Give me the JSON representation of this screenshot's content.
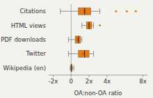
{
  "chart_data": {
    "type": "box",
    "orientation": "horizontal",
    "categories": [
      "Citations",
      "HTML views",
      "PDF downloads",
      "Twitter",
      "Wikipedia (en)"
    ],
    "boxes": [
      {
        "q1": 0.8,
        "median": 1.5,
        "q3": 2.2,
        "whisker_low": -1.2,
        "whisker_high": 3.2,
        "center": 1.5,
        "fliers": [
          5.0,
          6.2,
          7.2
        ]
      },
      {
        "q1": 1.7,
        "median": 2.0,
        "q3": 2.3,
        "whisker_low": 1.2,
        "whisker_high": 2.5,
        "center": 2.0,
        "fliers": [
          3.2
        ]
      },
      {
        "q1": 0.45,
        "median": 0.8,
        "q3": 1.05,
        "whisker_low": -0.3,
        "whisker_high": 1.2,
        "center": 0.75,
        "fliers": []
      },
      {
        "q1": 0.8,
        "median": 1.5,
        "q3": 2.0,
        "whisker_low": -0.3,
        "whisker_high": 2.5,
        "center": 1.4,
        "fliers": []
      },
      {
        "q1": -0.02,
        "median": 0.05,
        "q3": 0.1,
        "whisker_low": -0.1,
        "whisker_high": 0.3,
        "center": 0.04,
        "fliers": []
      }
    ],
    "color": "#E87B10",
    "xlabel": "OA:non-OA ratio",
    "xlim": [
      -2.5,
      8.5
    ],
    "xticks": [
      {
        "value": -2,
        "label": "-2x"
      },
      0,
      {
        "value": 2,
        "label": "2x"
      },
      {
        "value": 4,
        "label": "4x"
      },
      {
        "value": 8,
        "label": "8x"
      }
    ],
    "reference_line": 0
  }
}
